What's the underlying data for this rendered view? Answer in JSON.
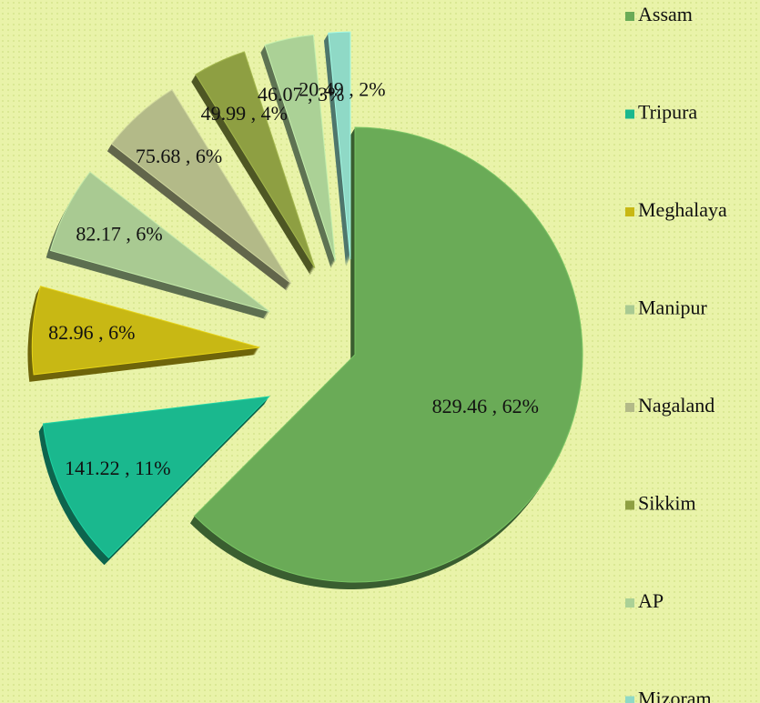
{
  "chart_data": {
    "type": "pie",
    "categories": [
      "Assam",
      "Tripura",
      "Meghalaya",
      "Manipur",
      "Nagaland",
      "Sikkim",
      "AP",
      "Mizoram"
    ],
    "values": [
      829.46,
      141.22,
      82.96,
      82.17,
      75.68,
      49.99,
      46.07,
      20.49
    ],
    "value_labels": [
      "829.46 , 62%",
      "141.22 , 11%",
      "82.96 , 6%",
      "82.17 , 6%",
      "75.68 , 6%",
      "49.99 , 4%",
      "46.07 , 3%",
      "20.49 , 2%"
    ],
    "colors": [
      "#6aab57",
      "#1ab88e",
      "#c8b814",
      "#a9ca92",
      "#b3ba88",
      "#8e9f42",
      "#abd196",
      "#8fd9c6"
    ],
    "legend": "right"
  }
}
